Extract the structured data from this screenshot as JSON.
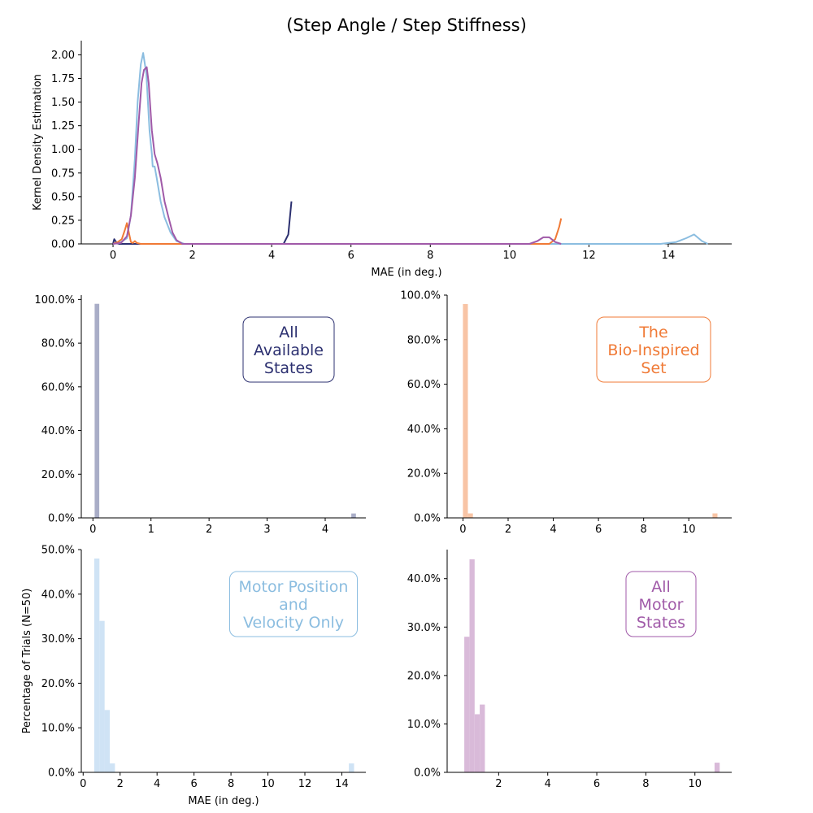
{
  "figure": {
    "title": "(Step Angle / Step Stiffness)"
  },
  "colors": {
    "all_states": "#2c3070",
    "bio_inspired": "#f07a36",
    "motor_pos_vel": "#8bbde0",
    "all_motor": "#a05aa8"
  },
  "chart_data": [
    {
      "type": "line",
      "name": "kde",
      "title": "(Step Angle / Step Stiffness)",
      "xlabel": "MAE (in deg.)",
      "ylabel": "Kernel Density Estimation",
      "xlim": [
        -0.8,
        15.6
      ],
      "ylim": [
        0,
        2.15
      ],
      "xticks": [
        0,
        2,
        4,
        6,
        8,
        10,
        12,
        14
      ],
      "yticks": [
        0.0,
        0.25,
        0.5,
        0.75,
        1.0,
        1.25,
        1.5,
        1.75,
        2.0
      ],
      "ytick_labels": [
        "0.00",
        "0.25",
        "0.50",
        "0.75",
        "1.00",
        "1.25",
        "1.50",
        "1.75",
        "2.00"
      ],
      "series": [
        {
          "color": "#8bbde0",
          "x": [
            0.0,
            0.2,
            0.35,
            0.45,
            0.55,
            0.62,
            0.7,
            0.76,
            0.84,
            0.92,
            0.98,
            1.0,
            1.05,
            1.1,
            1.2,
            1.3,
            1.45,
            1.6,
            1.8,
            2.2,
            4,
            8,
            12,
            13.8,
            14.2,
            14.45,
            14.65,
            14.85,
            15.0
          ],
          "y": [
            0.0,
            0.02,
            0.06,
            0.3,
            0.9,
            1.5,
            1.9,
            2.02,
            1.8,
            1.2,
            0.95,
            0.82,
            0.82,
            0.7,
            0.45,
            0.28,
            0.12,
            0.03,
            0.0,
            0.0,
            0.0,
            0.0,
            0.0,
            0.0,
            0.02,
            0.06,
            0.1,
            0.03,
            0.0
          ]
        },
        {
          "color": "#2c3070",
          "x": [
            0.0,
            0.03,
            0.08,
            0.15,
            0.25,
            1.0,
            2.0,
            3.0,
            4.0,
            4.3,
            4.42,
            4.5
          ],
          "y": [
            0.0,
            0.05,
            0.02,
            0.0,
            0.0,
            0.0,
            0.0,
            0.0,
            0.0,
            0.0,
            0.1,
            0.45
          ]
        },
        {
          "color": "#f07a36",
          "x": [
            0.0,
            0.12,
            0.22,
            0.3,
            0.35,
            0.4,
            0.45,
            0.5,
            0.55,
            0.6,
            0.7,
            1.0,
            3.0,
            6.0,
            9.0,
            10.5,
            11.0,
            11.15,
            11.25,
            11.3
          ],
          "y": [
            0.0,
            0.02,
            0.05,
            0.15,
            0.22,
            0.12,
            0.02,
            0.01,
            0.03,
            0.01,
            0.0,
            0.0,
            0.0,
            0.0,
            0.0,
            0.0,
            0.0,
            0.05,
            0.18,
            0.27
          ]
        },
        {
          "color": "#a05aa8",
          "x": [
            0.0,
            0.2,
            0.35,
            0.45,
            0.55,
            0.65,
            0.72,
            0.78,
            0.85,
            0.9,
            0.98,
            1.05,
            1.12,
            1.2,
            1.3,
            1.4,
            1.5,
            1.6,
            1.75,
            2.0,
            4,
            8,
            10.0,
            10.5,
            10.7,
            10.85,
            11.0,
            11.15,
            11.3
          ],
          "y": [
            0.0,
            0.01,
            0.08,
            0.3,
            0.7,
            1.3,
            1.7,
            1.84,
            1.87,
            1.7,
            1.2,
            0.95,
            0.85,
            0.7,
            0.45,
            0.28,
            0.12,
            0.04,
            0.0,
            0.0,
            0.0,
            0.0,
            0.0,
            0.0,
            0.03,
            0.07,
            0.07,
            0.02,
            0.0
          ]
        }
      ]
    },
    {
      "type": "bar",
      "name": "hist-all-available-states",
      "annotation": "All\nAvailable\nStates",
      "xlim": [
        -0.2,
        4.7
      ],
      "ylim": [
        0,
        102
      ],
      "xticks": [
        0,
        1,
        2,
        3,
        4
      ],
      "yticks": [
        0,
        20,
        40,
        60,
        80,
        100
      ],
      "ytick_labels": [
        "0.0%",
        "20.0%",
        "40.0%",
        "60.0%",
        "80.0%",
        "100.0%"
      ],
      "bin_width": 0.08,
      "bins": [
        {
          "x": 0.03,
          "value": 98
        },
        {
          "x": 4.45,
          "value": 2
        }
      ]
    },
    {
      "type": "bar",
      "name": "hist-bio-inspired-set",
      "annotation": "The\nBio-Inspired\nSet",
      "xlim": [
        -0.7,
        11.9
      ],
      "ylim": [
        0,
        100
      ],
      "xticks": [
        0,
        2,
        4,
        6,
        8,
        10
      ],
      "yticks": [
        0,
        20,
        40,
        60,
        80,
        100
      ],
      "ytick_labels": [
        "0.0%",
        "20.0%",
        "40.0%",
        "60.0%",
        "80.0%",
        "100.0%"
      ],
      "bin_width": 0.22,
      "bins": [
        {
          "x": 0.0,
          "value": 96
        },
        {
          "x": 0.22,
          "value": 2
        },
        {
          "x": 11.05,
          "value": 2
        }
      ]
    },
    {
      "type": "bar",
      "name": "hist-motor-position-velocity",
      "annotation": "Motor Position\nand\nVelocity Only",
      "xlabel": "MAE (in deg.)",
      "ylabel": "Percentage of Trials (N=50)",
      "xlim": [
        -0.1,
        15.3
      ],
      "ylim": [
        0,
        50
      ],
      "xticks": [
        0,
        2,
        4,
        6,
        8,
        10,
        12,
        14
      ],
      "yticks": [
        0,
        10,
        20,
        30,
        40,
        50
      ],
      "ytick_labels": [
        "0.0%",
        "10.0%",
        "20.0%",
        "30.0%",
        "40.0%",
        "50.0%"
      ],
      "bin_width": 0.28,
      "bins": [
        {
          "x": 0.6,
          "value": 48
        },
        {
          "x": 0.88,
          "value": 34
        },
        {
          "x": 1.16,
          "value": 14
        },
        {
          "x": 1.44,
          "value": 2
        },
        {
          "x": 14.38,
          "value": 2
        }
      ]
    },
    {
      "type": "bar",
      "name": "hist-all-motor-states",
      "annotation": "All\nMotor\nStates",
      "xlim": [
        -0.1,
        11.5
      ],
      "ylim": [
        0,
        46
      ],
      "xticks": [
        2,
        4,
        6,
        8,
        10
      ],
      "yticks": [
        0,
        10,
        20,
        30,
        40
      ],
      "ytick_labels": [
        "0.0%",
        "10.0%",
        "20.0%",
        "30.0%",
        "40.0%"
      ],
      "bin_width": 0.21,
      "bins": [
        {
          "x": 0.6,
          "value": 28
        },
        {
          "x": 0.81,
          "value": 44
        },
        {
          "x": 1.02,
          "value": 12
        },
        {
          "x": 1.23,
          "value": 14
        },
        {
          "x": 10.8,
          "value": 2
        }
      ]
    }
  ]
}
